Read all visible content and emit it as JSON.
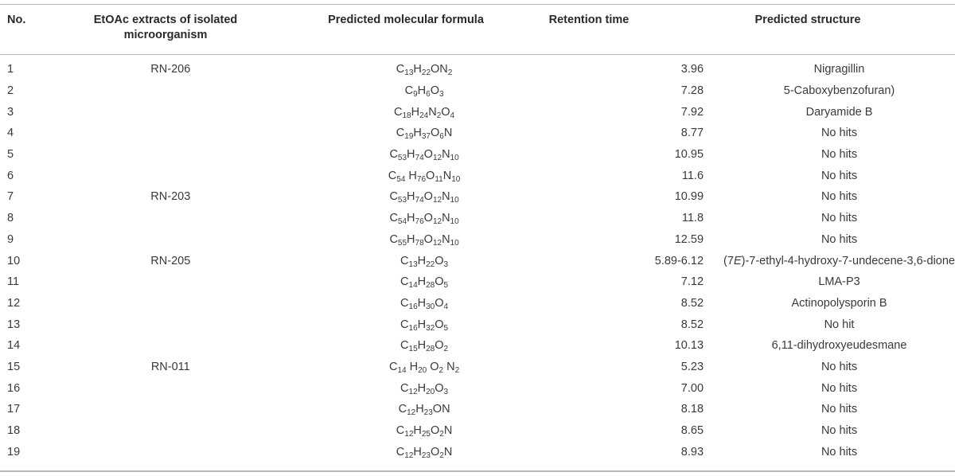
{
  "headers": {
    "no": "No.",
    "extract_line1": "EtOAc extracts of isolated",
    "extract_line2": "microorganism",
    "formula": "Predicted molecular formula",
    "retention": "Retention time",
    "structure": "Predicted structure"
  },
  "rows": [
    {
      "no": "1",
      "extract": "RN-206",
      "formula": [
        [
          "C",
          ""
        ],
        [
          "13",
          "sub"
        ],
        [
          "H",
          ""
        ],
        [
          "22",
          "sub"
        ],
        [
          "ON",
          ""
        ],
        [
          "2",
          "sub"
        ]
      ],
      "retention": "3.96",
      "structure": "Nigragillin"
    },
    {
      "no": "2",
      "extract": "",
      "formula": [
        [
          "C",
          ""
        ],
        [
          "9",
          "sub"
        ],
        [
          "H",
          ""
        ],
        [
          "6",
          "sub"
        ],
        [
          "O",
          ""
        ],
        [
          "3",
          "sub"
        ]
      ],
      "retention": "7.28",
      "structure": "5-Caboxybenzofuran)"
    },
    {
      "no": "3",
      "extract": "",
      "formula": [
        [
          "C",
          ""
        ],
        [
          "18",
          "sub"
        ],
        [
          "H",
          ""
        ],
        [
          "24",
          "sub"
        ],
        [
          "N",
          ""
        ],
        [
          "2",
          "sub"
        ],
        [
          "O",
          ""
        ],
        [
          "4",
          "sub"
        ]
      ],
      "retention": "7.92",
      "structure": "Daryamide B"
    },
    {
      "no": "4",
      "extract": "",
      "formula": [
        [
          "C",
          ""
        ],
        [
          "19",
          "sub"
        ],
        [
          "H",
          ""
        ],
        [
          "37",
          "sub"
        ],
        [
          "O",
          ""
        ],
        [
          "6",
          "sub"
        ],
        [
          "N",
          ""
        ]
      ],
      "retention": "8.77",
      "structure": "No hits"
    },
    {
      "no": "5",
      "extract": "",
      "formula": [
        [
          "C",
          ""
        ],
        [
          "53",
          "sub"
        ],
        [
          "H",
          ""
        ],
        [
          "74",
          "sub"
        ],
        [
          "O",
          ""
        ],
        [
          "12",
          "sub"
        ],
        [
          "N",
          ""
        ],
        [
          "10",
          "sub"
        ]
      ],
      "retention": "10.95",
      "structure": "No hits"
    },
    {
      "no": "6",
      "extract": "",
      "formula": [
        [
          "C",
          ""
        ],
        [
          "54",
          "sub"
        ],
        [
          " H",
          ""
        ],
        [
          "76",
          "sub"
        ],
        [
          "O",
          ""
        ],
        [
          "11",
          "sub"
        ],
        [
          "N",
          ""
        ],
        [
          "10",
          "sub"
        ]
      ],
      "retention": "11.6",
      "structure": "No hits"
    },
    {
      "no": "7",
      "extract": "RN-203",
      "formula": [
        [
          "C",
          ""
        ],
        [
          "53",
          "sub"
        ],
        [
          "H",
          ""
        ],
        [
          "74",
          "sub"
        ],
        [
          "O",
          ""
        ],
        [
          "12",
          "sub"
        ],
        [
          "N",
          ""
        ],
        [
          "10",
          "sub"
        ]
      ],
      "retention": "10.99",
      "structure": "No hits"
    },
    {
      "no": "8",
      "extract": "",
      "formula": [
        [
          "C",
          ""
        ],
        [
          "54",
          "sub"
        ],
        [
          "H",
          ""
        ],
        [
          "76",
          "sub"
        ],
        [
          "O",
          ""
        ],
        [
          "12",
          "sub"
        ],
        [
          "N",
          ""
        ],
        [
          "10",
          "sub"
        ]
      ],
      "retention": "11.8",
      "structure": "No hits"
    },
    {
      "no": "9",
      "extract": "",
      "formula": [
        [
          "C",
          ""
        ],
        [
          "55",
          "sub"
        ],
        [
          "H",
          ""
        ],
        [
          "78",
          "sub"
        ],
        [
          "O",
          ""
        ],
        [
          "12",
          "sub"
        ],
        [
          "N",
          ""
        ],
        [
          "10",
          "sub"
        ]
      ],
      "retention": "12.59",
      "structure": "No hits"
    },
    {
      "no": "10",
      "extract": "RN-205",
      "formula": [
        [
          "C",
          ""
        ],
        [
          "13",
          "sub"
        ],
        [
          "H",
          ""
        ],
        [
          "22",
          "sub"
        ],
        [
          "O",
          ""
        ],
        [
          "3",
          "sub"
        ]
      ],
      "retention": "5.89-6.12",
      "structure": "(7E)-7-ethyl-4-hydroxy-7-undecene-3,6-dione"
    },
    {
      "no": "11",
      "extract": "",
      "formula": [
        [
          "C",
          ""
        ],
        [
          "14",
          "sub"
        ],
        [
          "H",
          ""
        ],
        [
          "28",
          "sub"
        ],
        [
          "O",
          ""
        ],
        [
          "5",
          "sub"
        ]
      ],
      "retention": "7.12",
      "structure": "LMA-P3"
    },
    {
      "no": "12",
      "extract": "",
      "formula": [
        [
          "C",
          ""
        ],
        [
          "16",
          "sub"
        ],
        [
          "H",
          ""
        ],
        [
          "30",
          "sub"
        ],
        [
          "O",
          ""
        ],
        [
          "4",
          "sub"
        ]
      ],
      "retention": "8.52",
      "structure": "Actinopolysporin B"
    },
    {
      "no": "13",
      "extract": "",
      "formula": [
        [
          "C",
          ""
        ],
        [
          "16",
          "sub"
        ],
        [
          "H",
          ""
        ],
        [
          "32",
          "sub"
        ],
        [
          "O",
          ""
        ],
        [
          "5",
          "sub"
        ]
      ],
      "retention": "8.52",
      "structure": "No hit"
    },
    {
      "no": "14",
      "extract": "",
      "formula": [
        [
          "C",
          ""
        ],
        [
          "15",
          "sub"
        ],
        [
          "H",
          ""
        ],
        [
          "28",
          "sub"
        ],
        [
          "O",
          ""
        ],
        [
          "2",
          "sub"
        ]
      ],
      "retention": "10.13",
      "structure": "6,11-dihydroxyeudesmane"
    },
    {
      "no": "15",
      "extract": "RN-011",
      "formula": [
        [
          "C",
          ""
        ],
        [
          "14",
          "sub"
        ],
        [
          " H",
          ""
        ],
        [
          "20",
          "sub"
        ],
        [
          " O",
          ""
        ],
        [
          "2",
          "sub"
        ],
        [
          " N",
          ""
        ],
        [
          "2",
          "sub"
        ]
      ],
      "retention": "5.23",
      "structure": "No hits"
    },
    {
      "no": "16",
      "extract": "",
      "formula": [
        [
          "C",
          ""
        ],
        [
          "12",
          "sub"
        ],
        [
          "H",
          ""
        ],
        [
          "20",
          "sub"
        ],
        [
          "O",
          ""
        ],
        [
          "3",
          "sub"
        ]
      ],
      "retention": "7.00",
      "structure": "No hits"
    },
    {
      "no": "17",
      "extract": "",
      "formula": [
        [
          "C",
          ""
        ],
        [
          "12",
          "sub"
        ],
        [
          "H",
          ""
        ],
        [
          "23",
          "sub"
        ],
        [
          "ON",
          ""
        ]
      ],
      "retention": "8.18",
      "structure": "No hits"
    },
    {
      "no": "18",
      "extract": "",
      "formula": [
        [
          "C",
          ""
        ],
        [
          "12",
          "sub"
        ],
        [
          "H",
          ""
        ],
        [
          "25",
          "sub"
        ],
        [
          "O",
          ""
        ],
        [
          "2",
          "sub"
        ],
        [
          "N",
          ""
        ]
      ],
      "retention": "8.65",
      "structure": "No hits"
    },
    {
      "no": "19",
      "extract": "",
      "formula": [
        [
          "C",
          ""
        ],
        [
          "12",
          "sub"
        ],
        [
          "H",
          ""
        ],
        [
          "23",
          "sub"
        ],
        [
          "O",
          ""
        ],
        [
          "2",
          "sub"
        ],
        [
          "N",
          ""
        ]
      ],
      "retention": "8.93",
      "structure": "No hits"
    }
  ]
}
